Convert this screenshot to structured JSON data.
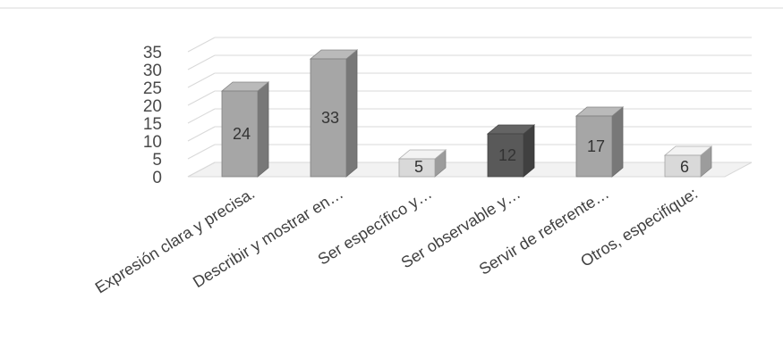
{
  "chart_data": {
    "type": "bar",
    "style": "3d-column",
    "categories": [
      "Expresión clara y precisa.",
      "Describir y mostrar en…",
      "Ser específico y…",
      "Ser observable y…",
      "Servir de referente…",
      "Otros, especifique:"
    ],
    "values": [
      24,
      33,
      5,
      12,
      17,
      6
    ],
    "bar_colors": [
      "#a6a6a6",
      "#a6a6a6",
      "#d9d9d9",
      "#595959",
      "#a6a6a6",
      "#d9d9d9"
    ],
    "ylim": [
      0,
      35
    ],
    "yticks": [
      0,
      5,
      10,
      15,
      20,
      25,
      30,
      35
    ],
    "grid": true,
    "legend": "none",
    "title": "",
    "xlabel": "",
    "ylabel": ""
  }
}
